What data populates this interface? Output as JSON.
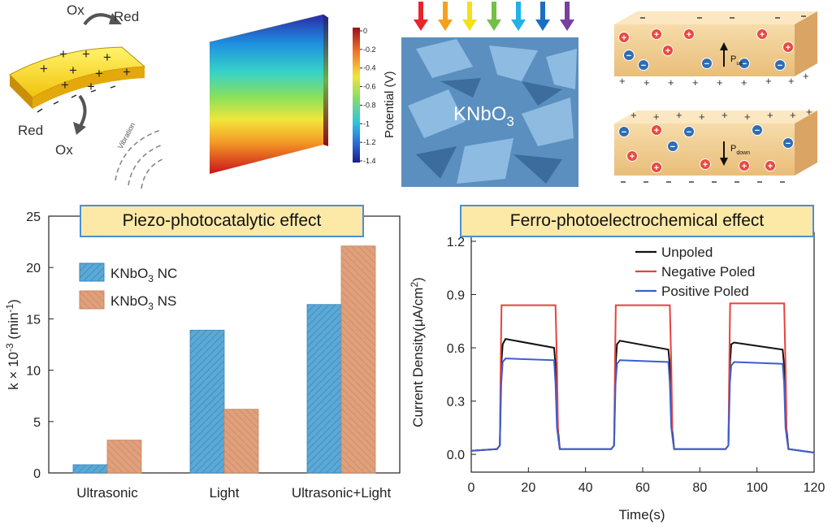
{
  "top": {
    "scheme": {
      "ox_top": "Ox",
      "red_top": "Red",
      "red_bottom": "Red",
      "ox_bottom": "Ox",
      "vibration": "Vibration"
    },
    "colorbar": {
      "title": "Potential (V)",
      "ticks": [
        "0",
        "-0.2",
        "-0.4",
        "-0.6",
        "-0.8",
        "-1",
        "-1.2",
        "-1.4"
      ]
    },
    "sem": {
      "label_main": "KNbO",
      "label_sub": "3",
      "arrow_colors": [
        "#e8252a",
        "#f5a11c",
        "#f2e11a",
        "#72c044",
        "#1fb3e8",
        "#1b6ec2",
        "#7b3fa0"
      ]
    },
    "domains": {
      "p_up_main": "P",
      "p_up_sub": "up",
      "p_down_main": "P",
      "p_down_sub": "down"
    }
  },
  "left_chart": {
    "banner": "Piezo-photocatalytic effect",
    "legend": [
      {
        "main": "KNbO",
        "sub": "3",
        "suffix": " NC"
      },
      {
        "main": "KNbO",
        "sub": "3",
        "suffix": " NS"
      }
    ]
  },
  "right_chart": {
    "banner": "Ferro-photoelectrochemical effect"
  },
  "chart_data": [
    {
      "type": "bar",
      "title": "Piezo-photocatalytic effect",
      "categories": [
        "Ultrasonic",
        "Light",
        "Ultrasonic+Light"
      ],
      "series": [
        {
          "name": "KNbO3 NC",
          "values": [
            0.8,
            13.9,
            16.4
          ],
          "color": "#5aa9d6"
        },
        {
          "name": "KNbO3 NS",
          "values": [
            3.2,
            6.2,
            22.1
          ],
          "color": "#e0a07c"
        }
      ],
      "ylabel": "k × 10-3 (min-1)",
      "ylim": [
        0,
        25
      ],
      "yticks": [
        0,
        5,
        10,
        15,
        20,
        25
      ],
      "legend_position": "top-left"
    },
    {
      "type": "line",
      "title": "Ferro-photoelectrochemical effect",
      "xlabel": "Time(s)",
      "ylabel": "Current Density(μA/cm2)",
      "xlim": [
        0,
        120
      ],
      "ylim": [
        -0.1,
        1.25
      ],
      "xticks": [
        0,
        20,
        40,
        60,
        80,
        100,
        120
      ],
      "yticks": [
        "0.0",
        "0.3",
        "0.6",
        "0.9",
        "1.2"
      ],
      "legend_position": "top-right",
      "series": [
        {
          "name": "Unpoled",
          "color": "#111111",
          "x": [
            0,
            9,
            10,
            10.5,
            11,
            12,
            29,
            29.5,
            30,
            31,
            49,
            50,
            50.5,
            51,
            52,
            69,
            69.5,
            70,
            71,
            89,
            90,
            90.5,
            91,
            92,
            109,
            109.5,
            110,
            111,
            120
          ],
          "y": [
            0.02,
            0.03,
            0.05,
            0.5,
            0.62,
            0.65,
            0.6,
            0.5,
            0.2,
            0.03,
            0.03,
            0.05,
            0.5,
            0.62,
            0.64,
            0.59,
            0.5,
            0.2,
            0.03,
            0.03,
            0.05,
            0.5,
            0.62,
            0.63,
            0.59,
            0.5,
            0.2,
            0.03,
            0.01
          ]
        },
        {
          "name": "Negative Poled",
          "color": "#e8413e",
          "x": [
            0,
            9,
            10,
            10.3,
            10.6,
            29.5,
            30,
            30.4,
            31,
            49,
            50,
            50.3,
            50.6,
            69.5,
            70,
            70.4,
            71,
            89,
            90,
            90.3,
            90.6,
            109.5,
            110,
            110.4,
            111,
            120
          ],
          "y": [
            0.02,
            0.03,
            0.05,
            0.5,
            0.84,
            0.84,
            0.5,
            0.1,
            0.03,
            0.03,
            0.05,
            0.5,
            0.84,
            0.84,
            0.5,
            0.1,
            0.03,
            0.03,
            0.05,
            0.5,
            0.85,
            0.85,
            0.5,
            0.1,
            0.03,
            0.01
          ]
        },
        {
          "name": "Positive Poled",
          "color": "#3a5fcd",
          "x": [
            0,
            9,
            10,
            10.5,
            11,
            12,
            29,
            29.5,
            30,
            31,
            49,
            50,
            50.5,
            51,
            52,
            69,
            69.5,
            70,
            71,
            89,
            90,
            90.5,
            91,
            92,
            109,
            109.5,
            110,
            111,
            120
          ],
          "y": [
            0.02,
            0.03,
            0.05,
            0.4,
            0.52,
            0.54,
            0.53,
            0.4,
            0.15,
            0.03,
            0.03,
            0.05,
            0.4,
            0.51,
            0.53,
            0.52,
            0.4,
            0.15,
            0.03,
            0.03,
            0.05,
            0.4,
            0.5,
            0.52,
            0.51,
            0.4,
            0.15,
            0.03,
            0.01
          ]
        }
      ]
    }
  ]
}
